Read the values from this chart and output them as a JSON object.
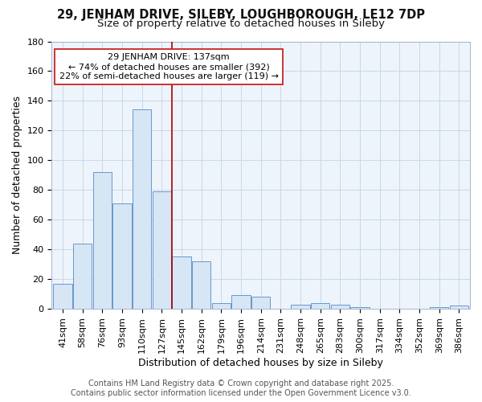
{
  "title1": "29, JENHAM DRIVE, SILEBY, LOUGHBOROUGH, LE12 7DP",
  "title2": "Size of property relative to detached houses in Sileby",
  "xlabel": "Distribution of detached houses by size in Sileby",
  "ylabel": "Number of detached properties",
  "categories": [
    "41sqm",
    "58sqm",
    "76sqm",
    "93sqm",
    "110sqm",
    "127sqm",
    "145sqm",
    "162sqm",
    "179sqm",
    "196sqm",
    "214sqm",
    "231sqm",
    "248sqm",
    "265sqm",
    "283sqm",
    "300sqm",
    "317sqm",
    "334sqm",
    "352sqm",
    "369sqm",
    "386sqm"
  ],
  "values": [
    17,
    44,
    92,
    71,
    134,
    79,
    35,
    32,
    4,
    9,
    8,
    0,
    3,
    4,
    3,
    1,
    0,
    0,
    0,
    1,
    2
  ],
  "bar_color": "#d6e6f5",
  "bar_edge_color": "#6699cc",
  "grid_color": "#c8d8e8",
  "background_color": "#ffffff",
  "plot_bg_color": "#eef4fb",
  "vline_x": 6.0,
  "vline_color": "#aa0000",
  "annotation_text": "29 JENHAM DRIVE: 137sqm\n← 74% of detached houses are smaller (392)\n22% of semi-detached houses are larger (119) →",
  "annotation_box_color": "#ffffff",
  "annotation_box_edge": "#cc2222",
  "ylim": [
    0,
    180
  ],
  "yticks": [
    0,
    20,
    40,
    60,
    80,
    100,
    120,
    140,
    160,
    180
  ],
  "footer1": "Contains HM Land Registry data © Crown copyright and database right 2025.",
  "footer2": "Contains public sector information licensed under the Open Government Licence v3.0.",
  "title1_fontsize": 10.5,
  "title2_fontsize": 9.5,
  "axis_label_fontsize": 9,
  "tick_fontsize": 8,
  "annotation_fontsize": 8,
  "footer_fontsize": 7
}
